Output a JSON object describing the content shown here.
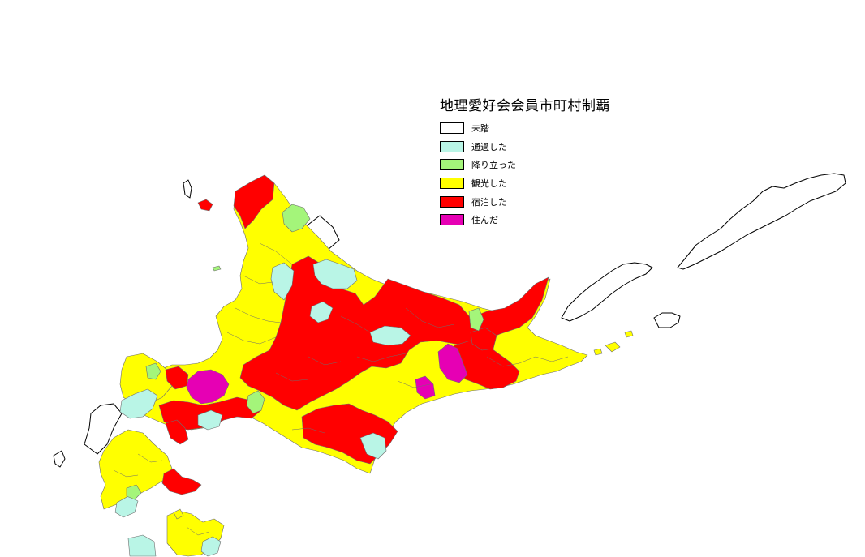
{
  "legend": {
    "title": "地理愛好会会員市町村制覇",
    "items": [
      {
        "key": "untrodden",
        "label": "未踏",
        "color": "#ffffff"
      },
      {
        "key": "passed",
        "label": "通過した",
        "color": "#b9f5e6"
      },
      {
        "key": "stopped",
        "label": "降り立った",
        "color": "#a4f57a"
      },
      {
        "key": "sightseeing",
        "label": "観光した",
        "color": "#ffff00"
      },
      {
        "key": "stayed",
        "label": "宿泊した",
        "color": "#ff0000"
      },
      {
        "key": "lived",
        "label": "住んだ",
        "color": "#e600b4"
      }
    ]
  }
}
